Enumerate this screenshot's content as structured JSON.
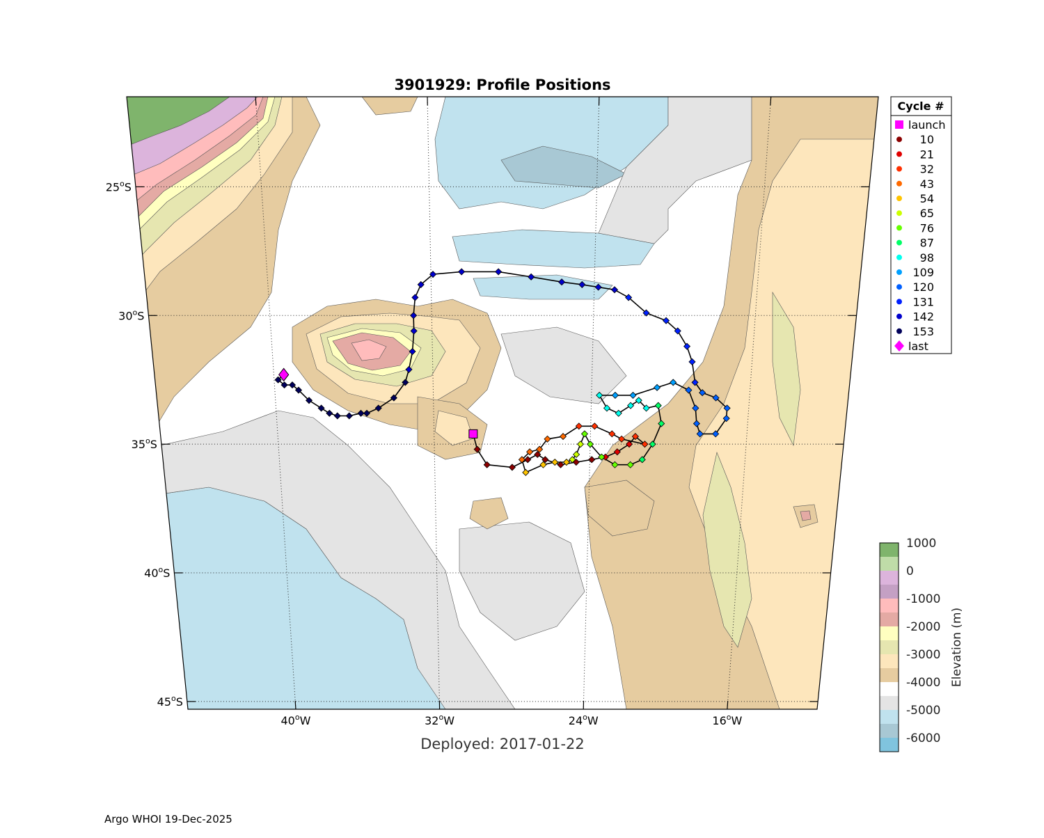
{
  "figure": {
    "title": "3901929: Profile Positions",
    "subtitle": "Deployed: 2017-01-22",
    "footer": "Argo WHOI 19-Dec-2025"
  },
  "map": {
    "lon_range": [
      -46,
      -11
    ],
    "lat_range": [
      -21,
      -46
    ],
    "lon_ticks": [
      {
        "num": "40",
        "hem": "W",
        "value": -40
      },
      {
        "num": "32",
        "hem": "W",
        "value": -32
      },
      {
        "num": "24",
        "hem": "W",
        "value": -24
      },
      {
        "num": "16",
        "hem": "W",
        "value": -16
      }
    ],
    "lat_ticks": [
      {
        "num": "25",
        "hem": "S",
        "value": -25
      },
      {
        "num": "30",
        "hem": "S",
        "value": -30
      },
      {
        "num": "35",
        "hem": "S",
        "value": -35
      },
      {
        "num": "40",
        "hem": "S",
        "value": -40
      },
      {
        "num": "45",
        "hem": "S",
        "value": -45
      }
    ],
    "grid": true
  },
  "legend": {
    "title": "Cycle #",
    "entries": [
      {
        "label": "launch",
        "marker": "square",
        "color": "#ff00ff"
      },
      {
        "label": "10",
        "marker": "dot",
        "color": "#8b0000"
      },
      {
        "label": "21",
        "marker": "dot",
        "color": "#e00000"
      },
      {
        "label": "32",
        "marker": "dot",
        "color": "#ff3000"
      },
      {
        "label": "43",
        "marker": "dot",
        "color": "#ff6a00"
      },
      {
        "label": "54",
        "marker": "dot",
        "color": "#ffc400"
      },
      {
        "label": "65",
        "marker": "dot",
        "color": "#ccff00"
      },
      {
        "label": "76",
        "marker": "dot",
        "color": "#66ff00"
      },
      {
        "label": "87",
        "marker": "dot",
        "color": "#00ff66"
      },
      {
        "label": "98",
        "marker": "dot",
        "color": "#00ffee"
      },
      {
        "label": "109",
        "marker": "dot",
        "color": "#00a0ff"
      },
      {
        "label": "120",
        "marker": "dot",
        "color": "#0060ff"
      },
      {
        "label": "131",
        "marker": "dot",
        "color": "#0020ff"
      },
      {
        "label": "142",
        "marker": "dot",
        "color": "#0000cc"
      },
      {
        "label": "153",
        "marker": "dot",
        "color": "#00005a"
      },
      {
        "label": "last",
        "marker": "diamond",
        "color": "#ff00ff"
      }
    ]
  },
  "colorbar": {
    "label": "Elevation (m)",
    "tick_labels": [
      "1000",
      "0",
      "-1000",
      "-2000",
      "-3000",
      "-4000",
      "-5000",
      "-6000"
    ],
    "colors": [
      "#7fb46c",
      "#bfdca8",
      "#dcb4dc",
      "#c4a0c4",
      "#ffbcbc",
      "#e4aaa4",
      "#ffffc0",
      "#e6e6b0",
      "#fde6bc",
      "#e6cca0",
      "#ffffff",
      "#e4e4e4",
      "#c0e2ee",
      "#a8c8d4",
      "#80c4de"
    ]
  },
  "chart_data": {
    "type": "scatter",
    "title": "3901929: Profile Positions",
    "xlabel": "",
    "ylabel": "",
    "x_unit": "longitude (degrees, negative = W)",
    "y_unit": "latitude (degrees, negative = S)",
    "launch": {
      "lon": -30.0,
      "lat": -34.6
    },
    "last": {
      "lon": -39.5,
      "lat": -32.3
    },
    "track": [
      {
        "lon": -30.0,
        "lat": -34.6,
        "color": "#8b0000"
      },
      {
        "lon": -29.8,
        "lat": -35.2,
        "color": "#8b0000"
      },
      {
        "lon": -29.3,
        "lat": -35.8,
        "color": "#8b0000"
      },
      {
        "lon": -28.0,
        "lat": -35.9,
        "color": "#8b0000"
      },
      {
        "lon": -27.2,
        "lat": -35.6,
        "color": "#8b0000"
      },
      {
        "lon": -26.7,
        "lat": -35.4,
        "color": "#8b0000"
      },
      {
        "lon": -26.3,
        "lat": -35.6,
        "color": "#8b0000"
      },
      {
        "lon": -25.5,
        "lat": -35.8,
        "color": "#8b0000"
      },
      {
        "lon": -24.7,
        "lat": -35.7,
        "color": "#8b0000"
      },
      {
        "lon": -23.9,
        "lat": -35.6,
        "color": "#8b0000"
      },
      {
        "lon": -23.2,
        "lat": -35.5,
        "color": "#e00000"
      },
      {
        "lon": -22.6,
        "lat": -35.3,
        "color": "#e00000"
      },
      {
        "lon": -22.0,
        "lat": -35.0,
        "color": "#e00000"
      },
      {
        "lon": -21.7,
        "lat": -34.7,
        "color": "#ff3000"
      },
      {
        "lon": -21.2,
        "lat": -35.0,
        "color": "#ff3000"
      },
      {
        "lon": -22.4,
        "lat": -34.8,
        "color": "#ff3000"
      },
      {
        "lon": -22.9,
        "lat": -34.6,
        "color": "#ff3000"
      },
      {
        "lon": -23.8,
        "lat": -34.3,
        "color": "#ff3000"
      },
      {
        "lon": -24.6,
        "lat": -34.3,
        "color": "#ff3000"
      },
      {
        "lon": -25.4,
        "lat": -34.7,
        "color": "#ff6a00"
      },
      {
        "lon": -26.2,
        "lat": -34.8,
        "color": "#ff6a00"
      },
      {
        "lon": -26.6,
        "lat": -35.2,
        "color": "#ff6a00"
      },
      {
        "lon": -27.1,
        "lat": -35.3,
        "color": "#ff6a00"
      },
      {
        "lon": -27.5,
        "lat": -35.6,
        "color": "#ff6a00"
      },
      {
        "lon": -27.3,
        "lat": -36.1,
        "color": "#ffc400"
      },
      {
        "lon": -26.4,
        "lat": -35.8,
        "color": "#ffc400"
      },
      {
        "lon": -25.8,
        "lat": -35.7,
        "color": "#ffc400"
      },
      {
        "lon": -25.2,
        "lat": -35.7,
        "color": "#ffc400"
      },
      {
        "lon": -24.9,
        "lat": -35.6,
        "color": "#ccff00"
      },
      {
        "lon": -24.7,
        "lat": -35.4,
        "color": "#ccff00"
      },
      {
        "lon": -24.5,
        "lat": -35.0,
        "color": "#ccff00"
      },
      {
        "lon": -24.3,
        "lat": -34.6,
        "color": "#66ff00"
      },
      {
        "lon": -24.0,
        "lat": -35.0,
        "color": "#66ff00"
      },
      {
        "lon": -23.4,
        "lat": -35.5,
        "color": "#66ff00"
      },
      {
        "lon": -22.7,
        "lat": -35.8,
        "color": "#66ff00"
      },
      {
        "lon": -21.9,
        "lat": -35.8,
        "color": "#66ff00"
      },
      {
        "lon": -21.3,
        "lat": -35.6,
        "color": "#00ff66"
      },
      {
        "lon": -20.8,
        "lat": -35.0,
        "color": "#00ff66"
      },
      {
        "lon": -20.4,
        "lat": -34.2,
        "color": "#00ff66"
      },
      {
        "lon": -20.6,
        "lat": -33.5,
        "color": "#00ff66"
      },
      {
        "lon": -21.2,
        "lat": -33.6,
        "color": "#00ffee"
      },
      {
        "lon": -21.6,
        "lat": -33.3,
        "color": "#00ffee"
      },
      {
        "lon": -22.0,
        "lat": -33.5,
        "color": "#00ffee"
      },
      {
        "lon": -22.6,
        "lat": -33.8,
        "color": "#00ffee"
      },
      {
        "lon": -23.2,
        "lat": -33.6,
        "color": "#00ffee"
      },
      {
        "lon": -23.6,
        "lat": -33.1,
        "color": "#00ffee"
      },
      {
        "lon": -22.8,
        "lat": -33.1,
        "color": "#00a0ff"
      },
      {
        "lon": -21.9,
        "lat": -33.1,
        "color": "#00a0ff"
      },
      {
        "lon": -20.7,
        "lat": -32.8,
        "color": "#00a0ff"
      },
      {
        "lon": -19.9,
        "lat": -32.6,
        "color": "#00a0ff"
      },
      {
        "lon": -19.1,
        "lat": -32.9,
        "color": "#0060ff"
      },
      {
        "lon": -18.7,
        "lat": -33.6,
        "color": "#0060ff"
      },
      {
        "lon": -18.6,
        "lat": -34.2,
        "color": "#0060ff"
      },
      {
        "lon": -18.4,
        "lat": -34.6,
        "color": "#0060ff"
      },
      {
        "lon": -17.6,
        "lat": -34.6,
        "color": "#0060ff"
      },
      {
        "lon": -17.1,
        "lat": -34.0,
        "color": "#0060ff"
      },
      {
        "lon": -17.1,
        "lat": -33.6,
        "color": "#0060ff"
      },
      {
        "lon": -17.7,
        "lat": -33.2,
        "color": "#0060ff"
      },
      {
        "lon": -18.4,
        "lat": -33.0,
        "color": "#0060ff"
      },
      {
        "lon": -18.8,
        "lat": -32.6,
        "color": "#0020ff"
      },
      {
        "lon": -19.0,
        "lat": -31.8,
        "color": "#0020ff"
      },
      {
        "lon": -19.3,
        "lat": -31.2,
        "color": "#0020ff"
      },
      {
        "lon": -19.8,
        "lat": -30.6,
        "color": "#0020ff"
      },
      {
        "lon": -20.4,
        "lat": -30.2,
        "color": "#0020ff"
      },
      {
        "lon": -21.4,
        "lat": -29.9,
        "color": "#0020ff"
      },
      {
        "lon": -22.3,
        "lat": -29.3,
        "color": "#0020ff"
      },
      {
        "lon": -23.0,
        "lat": -29.0,
        "color": "#0000cc"
      },
      {
        "lon": -23.8,
        "lat": -28.9,
        "color": "#0000cc"
      },
      {
        "lon": -24.6,
        "lat": -28.8,
        "color": "#0000cc"
      },
      {
        "lon": -25.6,
        "lat": -28.7,
        "color": "#0000cc"
      },
      {
        "lon": -27.1,
        "lat": -28.5,
        "color": "#0000cc"
      },
      {
        "lon": -28.7,
        "lat": -28.3,
        "color": "#0000cc"
      },
      {
        "lon": -30.5,
        "lat": -28.3,
        "color": "#0000cc"
      },
      {
        "lon": -31.9,
        "lat": -28.4,
        "color": "#0000cc"
      },
      {
        "lon": -32.5,
        "lat": -28.8,
        "color": "#0000cc"
      },
      {
        "lon": -32.8,
        "lat": -29.3,
        "color": "#0000cc"
      },
      {
        "lon": -32.9,
        "lat": -30.0,
        "color": "#0000cc"
      },
      {
        "lon": -32.9,
        "lat": -30.6,
        "color": "#0000cc"
      },
      {
        "lon": -33.0,
        "lat": -31.4,
        "color": "#0000cc"
      },
      {
        "lon": -33.2,
        "lat": -32.1,
        "color": "#0000cc"
      },
      {
        "lon": -33.4,
        "lat": -32.6,
        "color": "#00005a"
      },
      {
        "lon": -34.0,
        "lat": -33.2,
        "color": "#00005a"
      },
      {
        "lon": -34.8,
        "lat": -33.6,
        "color": "#00005a"
      },
      {
        "lon": -35.4,
        "lat": -33.8,
        "color": "#00005a"
      },
      {
        "lon": -35.7,
        "lat": -33.8,
        "color": "#00005a"
      },
      {
        "lon": -36.3,
        "lat": -33.9,
        "color": "#00005a"
      },
      {
        "lon": -36.9,
        "lat": -33.9,
        "color": "#00005a"
      },
      {
        "lon": -37.3,
        "lat": -33.8,
        "color": "#00005a"
      },
      {
        "lon": -37.7,
        "lat": -33.6,
        "color": "#00005a"
      },
      {
        "lon": -38.3,
        "lat": -33.3,
        "color": "#00005a"
      },
      {
        "lon": -38.8,
        "lat": -32.9,
        "color": "#00005a"
      },
      {
        "lon": -39.1,
        "lat": -32.7,
        "color": "#00005a"
      },
      {
        "lon": -39.5,
        "lat": -32.7,
        "color": "#00005a"
      },
      {
        "lon": -39.8,
        "lat": -32.5,
        "color": "#00005a"
      },
      {
        "lon": -39.5,
        "lat": -32.3,
        "color": "#ff00ff"
      }
    ]
  }
}
